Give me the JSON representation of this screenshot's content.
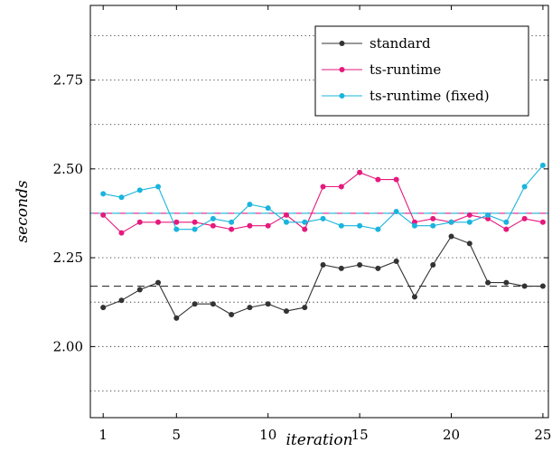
{
  "chart_data": {
    "type": "line",
    "xlabel": "iteration",
    "ylabel": "seconds",
    "xlim": [
      0.3,
      25.3
    ],
    "ylim": [
      1.8,
      2.96
    ],
    "x_ticks": [
      1,
      5,
      10,
      15,
      20,
      25
    ],
    "y_ticks": [
      2.0,
      2.25,
      2.5,
      2.75
    ],
    "y_tick_labels": [
      "2.00",
      "2.25",
      "2.50",
      "2.75"
    ],
    "grid": "horizontal dotted",
    "legend_position": "top-right",
    "x": [
      1,
      2,
      3,
      4,
      5,
      6,
      7,
      8,
      9,
      10,
      11,
      12,
      13,
      14,
      15,
      16,
      17,
      18,
      19,
      20,
      21,
      22,
      23,
      24,
      25
    ],
    "series": [
      {
        "name": "standard",
        "color": "#333333",
        "mean": 2.17,
        "values": [
          2.11,
          2.13,
          2.16,
          2.18,
          2.08,
          2.12,
          2.12,
          2.09,
          2.11,
          2.12,
          2.1,
          2.11,
          2.23,
          2.22,
          2.23,
          2.22,
          2.24,
          2.14,
          2.23,
          2.31,
          2.29,
          2.18,
          2.18,
          2.17,
          2.17
        ]
      },
      {
        "name": "ts-runtime",
        "color": "#e6197d",
        "mean": 2.375,
        "values": [
          2.37,
          2.32,
          2.35,
          2.35,
          2.35,
          2.35,
          2.34,
          2.33,
          2.34,
          2.34,
          2.37,
          2.33,
          2.45,
          2.45,
          2.49,
          2.47,
          2.47,
          2.35,
          2.36,
          2.35,
          2.37,
          2.36,
          2.33,
          2.36,
          2.35
        ]
      },
      {
        "name": "ts-runtime (fixed)",
        "color": "#1ab4de",
        "mean": 2.375,
        "values": [
          2.43,
          2.42,
          2.44,
          2.45,
          2.33,
          2.33,
          2.36,
          2.35,
          2.4,
          2.39,
          2.35,
          2.35,
          2.36,
          2.34,
          2.34,
          2.33,
          2.38,
          2.34,
          2.34,
          2.35,
          2.35,
          2.37,
          2.35,
          2.45,
          2.51
        ]
      }
    ]
  }
}
